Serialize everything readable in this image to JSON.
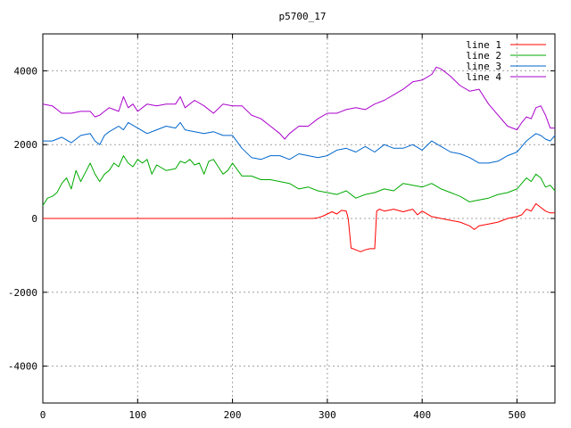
{
  "chart_data": {
    "type": "line",
    "title": "p5700_17",
    "xlabel": "",
    "ylabel": "",
    "xlim": [
      0,
      540
    ],
    "ylim": [
      -5000,
      5000
    ],
    "x_ticks": [
      0,
      100,
      200,
      300,
      400,
      500
    ],
    "y_ticks": [
      -4000,
      -2000,
      0,
      2000,
      4000
    ],
    "grid": true,
    "legend_position": "top-right",
    "series": [
      {
        "name": "line 1",
        "color": "#ff0000",
        "x": [
          0,
          100,
          200,
          285,
          290,
          295,
          300,
          305,
          310,
          315,
          320,
          322,
          325,
          330,
          335,
          340,
          345,
          350,
          352,
          355,
          360,
          370,
          380,
          390,
          395,
          400,
          410,
          420,
          430,
          440,
          450,
          455,
          460,
          470,
          480,
          490,
          500,
          505,
          510,
          515,
          520,
          525,
          530,
          535,
          540
        ],
        "values": [
          0,
          0,
          0,
          0,
          20,
          60,
          120,
          180,
          120,
          220,
          200,
          0,
          -800,
          -850,
          -900,
          -850,
          -820,
          -820,
          200,
          250,
          200,
          250,
          180,
          250,
          100,
          200,
          50,
          0,
          -50,
          -100,
          -200,
          -300,
          -200,
          -150,
          -100,
          0,
          50,
          100,
          250,
          200,
          400,
          300,
          200,
          150,
          150
        ]
      },
      {
        "name": "line 2",
        "color": "#00aa00",
        "x": [
          0,
          5,
          10,
          15,
          20,
          25,
          30,
          35,
          40,
          45,
          50,
          55,
          60,
          65,
          70,
          75,
          80,
          85,
          90,
          95,
          100,
          105,
          110,
          115,
          120,
          130,
          140,
          145,
          150,
          155,
          160,
          165,
          170,
          175,
          180,
          185,
          190,
          195,
          200,
          210,
          220,
          230,
          240,
          250,
          260,
          270,
          280,
          290,
          300,
          310,
          320,
          330,
          340,
          350,
          360,
          370,
          380,
          390,
          400,
          410,
          420,
          430,
          440,
          450,
          460,
          470,
          480,
          490,
          500,
          505,
          510,
          515,
          520,
          525,
          530,
          535,
          540
        ],
        "values": [
          350,
          550,
          600,
          700,
          950,
          1100,
          800,
          1300,
          1000,
          1250,
          1500,
          1200,
          1000,
          1200,
          1300,
          1500,
          1400,
          1700,
          1500,
          1400,
          1600,
          1500,
          1600,
          1200,
          1450,
          1300,
          1350,
          1550,
          1500,
          1600,
          1450,
          1500,
          1200,
          1550,
          1600,
          1400,
          1200,
          1300,
          1500,
          1150,
          1150,
          1050,
          1050,
          1000,
          950,
          800,
          850,
          750,
          700,
          650,
          750,
          550,
          650,
          700,
          800,
          750,
          950,
          900,
          850,
          950,
          800,
          700,
          600,
          450,
          500,
          550,
          650,
          700,
          800,
          950,
          1100,
          1000,
          1200,
          1100,
          850,
          900,
          750
        ]
      },
      {
        "name": "line 3",
        "color": "#0066cc",
        "x": [
          0,
          10,
          20,
          30,
          40,
          50,
          55,
          60,
          65,
          70,
          80,
          85,
          90,
          100,
          110,
          120,
          130,
          140,
          145,
          150,
          160,
          170,
          180,
          190,
          200,
          210,
          220,
          230,
          240,
          250,
          260,
          270,
          280,
          290,
          300,
          310,
          320,
          330,
          340,
          350,
          360,
          370,
          380,
          390,
          400,
          410,
          420,
          430,
          440,
          450,
          460,
          470,
          480,
          490,
          500,
          505,
          510,
          515,
          520,
          525,
          530,
          535,
          540
        ],
        "values": [
          2100,
          2100,
          2200,
          2050,
          2250,
          2300,
          2100,
          2000,
          2250,
          2350,
          2500,
          2400,
          2600,
          2450,
          2300,
          2400,
          2500,
          2450,
          2600,
          2400,
          2350,
          2300,
          2350,
          2250,
          2250,
          1900,
          1650,
          1600,
          1700,
          1700,
          1600,
          1750,
          1700,
          1650,
          1700,
          1850,
          1900,
          1800,
          1950,
          1800,
          2000,
          1900,
          1900,
          2000,
          1850,
          2100,
          1950,
          1800,
          1750,
          1650,
          1500,
          1500,
          1550,
          1700,
          1800,
          1950,
          2100,
          2200,
          2300,
          2250,
          2150,
          2100,
          2250
        ]
      },
      {
        "name": "line 4",
        "color": "#aa00cc",
        "x": [
          0,
          10,
          20,
          30,
          40,
          50,
          55,
          60,
          65,
          70,
          80,
          85,
          90,
          95,
          100,
          110,
          120,
          130,
          140,
          145,
          150,
          160,
          170,
          180,
          190,
          200,
          210,
          220,
          230,
          240,
          250,
          255,
          260,
          270,
          280,
          290,
          300,
          310,
          320,
          330,
          340,
          350,
          360,
          370,
          380,
          390,
          400,
          410,
          415,
          420,
          430,
          440,
          450,
          460,
          470,
          480,
          490,
          500,
          505,
          510,
          515,
          520,
          525,
          530,
          535,
          540
        ],
        "values": [
          3100,
          3050,
          2850,
          2850,
          2900,
          2900,
          2750,
          2800,
          2900,
          3000,
          2900,
          3300,
          3000,
          3100,
          2900,
          3100,
          3050,
          3100,
          3100,
          3300,
          3000,
          3200,
          3050,
          2850,
          3100,
          3050,
          3050,
          2800,
          2700,
          2500,
          2300,
          2150,
          2300,
          2500,
          2500,
          2700,
          2850,
          2850,
          2950,
          3000,
          2950,
          3100,
          3200,
          3350,
          3500,
          3700,
          3750,
          3900,
          4100,
          4050,
          3850,
          3600,
          3450,
          3500,
          3100,
          2800,
          2500,
          2400,
          2600,
          2750,
          2700,
          3000,
          3050,
          2800,
          2450,
          2450
        ]
      }
    ]
  }
}
